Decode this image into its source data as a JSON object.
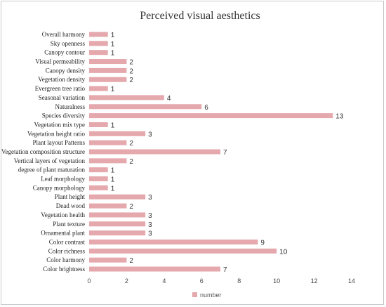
{
  "chart_data": {
    "type": "bar",
    "orientation": "horizontal",
    "title": "Perceived visual aesthetics",
    "categories": [
      "Overall harmony",
      "Sky openness",
      "Canopy contour",
      "Visual permeability",
      "Canopy density",
      "Vegetation density",
      "Evergreen tree ratio",
      "Seasonal variation",
      "Naturalness",
      "Species diversity",
      "Vegetation mix type",
      "Vegetation height ratio",
      "Plant layout Patterns",
      "Vegetation composition structure",
      "Vertical layers of vegetation",
      "degree of plant maturation",
      "Leaf morphology",
      "Canopy morphology",
      "Plant height",
      "Dead wood",
      "Vegetation health",
      "Plant texture",
      "Ornamental plant",
      "Color contrast",
      "Color richness",
      "Color harmony",
      "Color brightness"
    ],
    "series": [
      {
        "name": "number",
        "color": "#e4a8ad",
        "values": [
          1,
          1,
          1,
          2,
          2,
          2,
          1,
          4,
          6,
          13,
          1,
          3,
          2,
          7,
          2,
          1,
          1,
          1,
          3,
          2,
          3,
          3,
          3,
          9,
          10,
          2,
          7
        ]
      }
    ],
    "xlim": [
      0,
      14
    ],
    "xticks": [
      0,
      2,
      4,
      6,
      8,
      10,
      12,
      14
    ],
    "grid": false,
    "data_labels": true,
    "legend": {
      "position": "bottom"
    }
  }
}
